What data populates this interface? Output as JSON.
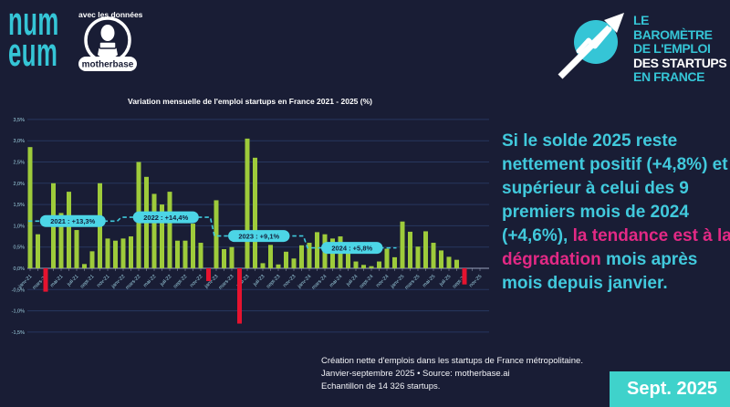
{
  "header": {
    "numeum_top": "num",
    "numeum_bottom": "eum",
    "tagline": "avec les données",
    "motherbase_label": "motherbase",
    "barometre": {
      "line1": "LE BAROMÈTRE",
      "line2": "DE L'EMPLOI",
      "line3": "DES STARTUPS",
      "line4": "EN FRANCE"
    }
  },
  "chart_data": {
    "type": "bar",
    "title": "Variation mensuelle de l'emploi startups en France 2021 - 2025 (%)",
    "ylabel": "",
    "xlabel": "",
    "unit": "%",
    "ylim": [
      -1.5,
      3.5
    ],
    "y_tick_step": 0.5,
    "grid": true,
    "months": [
      "janv-21",
      "févr-21",
      "mars-21",
      "avr-21",
      "mai-21",
      "juin-21",
      "juil-21",
      "août-21",
      "sept-21",
      "oct-21",
      "nov-21",
      "déc-21",
      "janv-22",
      "févr-22",
      "mars-22",
      "avr-22",
      "mai-22",
      "juin-22",
      "juil-22",
      "août-22",
      "sept-22",
      "oct-22",
      "nov-22",
      "déc-22",
      "janv-23",
      "févr-23",
      "mars-23",
      "avr-23",
      "mai-23",
      "juin-23",
      "juil-23",
      "août-23",
      "sept-23",
      "oct-23",
      "nov-23",
      "déc-23",
      "janv-24",
      "févr-24",
      "mars-24",
      "avr-24",
      "mai-24",
      "juin-24",
      "juil-24",
      "août-24",
      "sept-24",
      "oct-24",
      "nov-24",
      "déc-24",
      "janv-25",
      "févr-25",
      "mars-25",
      "avr-25",
      "mai-25",
      "juin-25",
      "juil-25",
      "août-25",
      "sept-25"
    ],
    "values": [
      2.85,
      0.8,
      -0.55,
      2.0,
      1.3,
      1.8,
      0.9,
      0.1,
      0.4,
      2.0,
      0.7,
      0.65,
      0.7,
      0.75,
      2.5,
      2.15,
      1.75,
      1.5,
      1.8,
      0.65,
      0.65,
      1.05,
      0.6,
      -0.3,
      1.6,
      0.45,
      0.5,
      -1.3,
      3.05,
      2.6,
      0.12,
      0.55,
      0.09,
      0.39,
      0.23,
      0.54,
      0.6,
      0.85,
      0.8,
      0.7,
      0.75,
      0.35,
      0.16,
      0.08,
      0.05,
      0.16,
      0.46,
      0.26,
      1.1,
      0.86,
      0.51,
      0.87,
      0.6,
      0.42,
      0.27,
      0.2,
      -0.38
    ],
    "x_tick_labels": [
      "janv-21",
      "mars-21",
      "mai-21",
      "juil-21",
      "sept-21",
      "nov-21",
      "janv-22",
      "mars-22",
      "mai-22",
      "juil-22",
      "sept-22",
      "nov-22",
      "janv-23",
      "mars-23",
      "mai-23",
      "juil-23",
      "sept-23",
      "nov-23",
      "janv-24",
      "mars-24",
      "mai-24",
      "juil-24",
      "sept-24",
      "nov-24",
      "janv-25",
      "mars-25",
      "mai-25",
      "juil-25",
      "sept-25",
      "nov-25"
    ],
    "year_averages": [
      {
        "year": "2021",
        "label": "2021 : +13,3%",
        "annual_pct": "+13,3%",
        "monthly_avg": 1.11,
        "start": 0,
        "end": 11
      },
      {
        "year": "2022",
        "label": "2022 : +14,4%",
        "annual_pct": "+14,4%",
        "monthly_avg": 1.2,
        "start": 12,
        "end": 23
      },
      {
        "year": "2023",
        "label": "2023 : +9,1%",
        "annual_pct": "+9,1%",
        "monthly_avg": 0.76,
        "start": 24,
        "end": 35
      },
      {
        "year": "2024",
        "label": "2024 : +5,8%",
        "annual_pct": "+5,8%",
        "monthly_avg": 0.48,
        "start": 36,
        "end": 47
      }
    ],
    "bar_color_positive": "#9ecb3b",
    "bar_color_negative": "#e5132f",
    "avg_line_color": "#3fc9dc",
    "pill_bg": "#4cd5e6",
    "pill_text_color": "#14203c",
    "grid_color": "#27375f",
    "zero_line_color": "#9aa3bd",
    "tick_label_color": "#9fd2e2"
  },
  "insight": {
    "text_before": "Si le solde 2025 reste nettement positif (+4,8%) et supérieur à celui des 9 premiers mois de 2024 (+4,6%), ",
    "highlight": "la tendance est à la dégradation",
    "text_after": " mois après mois depuis janvier.",
    "text_color": "#41c9dc",
    "highlight_color": "#e32985"
  },
  "footer": {
    "line1": "Création nette d'emplois dans les startups de France métropolitaine.",
    "line2": "Janvier-septembre 2025 • Source: motherbase.ai",
    "line3": "Echantillon de 14 326 startups."
  },
  "date_badge": {
    "label": "Sept. 2025",
    "bg": "#3fd2cb"
  },
  "colors": {
    "background": "#191d35",
    "accent_teal": "#35c5d6",
    "green": "#9ecb3b",
    "red": "#e5132f"
  }
}
